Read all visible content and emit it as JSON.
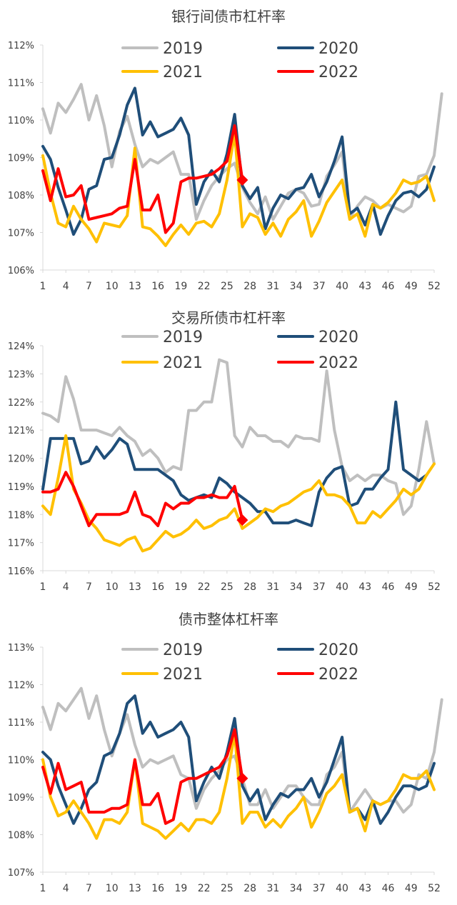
{
  "colors": {
    "2019": "#bfbfbf",
    "2020": "#1f4e79",
    "2021": "#ffc000",
    "2022": "#ff0000",
    "axis": "#d9d9d9",
    "text": "#404040"
  },
  "x_ticks": [
    1,
    4,
    7,
    10,
    13,
    16,
    19,
    22,
    25,
    28,
    31,
    34,
    37,
    40,
    43,
    46,
    49,
    52
  ],
  "chart_data": [
    {
      "type": "line",
      "title": "银行间债市杠杆率",
      "y_unit": "%",
      "ylim": [
        106,
        112
      ],
      "y_ticks": [
        106,
        107,
        108,
        109,
        110,
        111,
        112
      ],
      "xlim": [
        1,
        52
      ],
      "grid": false,
      "legend": "top, two columns",
      "series": [
        {
          "name": "2019",
          "values": [
            110.3,
            109.65,
            110.45,
            110.2,
            110.55,
            110.95,
            110.0,
            110.65,
            109.85,
            108.75,
            109.7,
            110.1,
            109.35,
            108.75,
            108.95,
            108.85,
            109.0,
            109.15,
            108.55,
            108.55,
            107.35,
            107.85,
            108.25,
            108.5,
            108.7,
            108.85,
            108.2,
            107.8,
            107.5,
            107.95,
            107.35,
            107.7,
            108.05,
            108.15,
            108.05,
            107.7,
            107.75,
            108.5,
            108.8,
            109.15,
            107.4,
            107.7,
            107.95,
            107.85,
            107.65,
            107.75,
            107.65,
            107.55,
            107.7,
            108.5,
            108.55,
            109.05,
            110.7
          ]
        },
        {
          "name": "2020",
          "values": [
            109.3,
            108.95,
            108.2,
            107.6,
            106.95,
            107.35,
            108.15,
            108.25,
            108.95,
            109.0,
            109.6,
            110.4,
            110.85,
            109.6,
            109.95,
            109.55,
            109.65,
            109.75,
            110.05,
            109.6,
            107.75,
            108.35,
            108.65,
            108.35,
            109.1,
            110.15,
            108.25,
            107.9,
            108.2,
            107.1,
            107.65,
            108.0,
            107.9,
            108.15,
            108.2,
            108.55,
            107.95,
            108.35,
            108.9,
            109.55,
            107.5,
            107.65,
            107.2,
            107.75,
            106.95,
            107.45,
            107.85,
            108.05,
            108.1,
            107.95,
            108.15,
            108.75
          ]
        },
        {
          "name": "2021",
          "values": [
            109.05,
            108.05,
            107.25,
            107.15,
            107.7,
            107.35,
            107.1,
            106.75,
            107.25,
            107.2,
            107.15,
            107.45,
            109.25,
            107.15,
            107.1,
            106.9,
            106.65,
            106.95,
            107.2,
            106.95,
            107.25,
            107.3,
            107.15,
            107.5,
            108.4,
            109.65,
            107.15,
            107.5,
            107.4,
            106.95,
            107.25,
            106.9,
            107.35,
            107.55,
            107.85,
            106.9,
            107.3,
            107.8,
            108.1,
            108.4,
            107.35,
            107.5,
            106.9,
            107.75,
            107.65,
            107.8,
            108.05,
            108.4,
            108.3,
            108.35,
            108.5,
            107.85
          ]
        },
        {
          "name": "2022",
          "values": [
            108.65,
            107.85,
            108.7,
            107.95,
            108.0,
            108.25,
            107.35,
            107.4,
            107.45,
            107.5,
            107.65,
            107.7,
            108.95,
            107.6,
            107.6,
            108.0,
            107.0,
            107.25,
            108.35,
            108.45,
            108.45,
            108.5,
            108.55,
            108.7,
            108.9,
            109.85,
            108.4
          ]
        }
      ]
    },
    {
      "type": "line",
      "title": "交易所债市杠杆率",
      "y_unit": "%",
      "ylim": [
        116,
        124
      ],
      "y_ticks": [
        116,
        117,
        118,
        119,
        120,
        121,
        122,
        123,
        124
      ],
      "xlim": [
        1,
        52
      ],
      "grid": false,
      "legend": "top, two columns",
      "series": [
        {
          "name": "2019",
          "values": [
            121.6,
            121.5,
            121.3,
            122.9,
            122.1,
            121.0,
            121.0,
            121.0,
            120.9,
            120.8,
            121.1,
            120.8,
            120.6,
            120.1,
            120.3,
            120.0,
            119.5,
            119.7,
            119.6,
            121.7,
            121.7,
            122.0,
            122.0,
            123.5,
            123.4,
            120.8,
            120.4,
            121.1,
            120.8,
            120.8,
            120.6,
            120.6,
            120.4,
            120.8,
            120.7,
            120.7,
            120.6,
            123.1,
            121.0,
            119.7,
            119.2,
            119.4,
            119.2,
            119.4,
            119.4,
            119.2,
            119.1,
            118.0,
            118.3,
            119.6,
            121.3,
            119.8
          ]
        },
        {
          "name": "2020",
          "values": [
            118.9,
            120.7,
            120.7,
            120.7,
            120.7,
            119.8,
            119.9,
            120.4,
            120.0,
            120.3,
            120.7,
            120.5,
            119.6,
            119.6,
            119.6,
            119.6,
            119.4,
            119.2,
            118.7,
            118.5,
            118.6,
            118.7,
            118.6,
            119.3,
            119.1,
            118.8,
            118.6,
            118.4,
            118.1,
            118.1,
            117.7,
            117.7,
            117.7,
            117.8,
            117.7,
            117.6,
            118.8,
            119.3,
            119.6,
            119.7,
            118.3,
            118.4,
            118.9,
            118.9,
            119.3,
            119.6,
            122.0,
            119.6,
            119.4,
            119.2,
            119.4
          ]
        },
        {
          "name": "2021",
          "values": [
            118.3,
            118.0,
            119.3,
            120.8,
            118.9,
            118.4,
            117.8,
            117.5,
            117.1,
            117.0,
            116.9,
            117.1,
            117.2,
            116.7,
            116.8,
            117.1,
            117.4,
            117.2,
            117.3,
            117.5,
            117.8,
            117.5,
            117.6,
            117.8,
            117.9,
            118.2,
            117.5,
            117.7,
            117.9,
            118.2,
            118.1,
            118.3,
            118.4,
            118.6,
            118.8,
            118.9,
            119.2,
            118.7,
            118.7,
            118.6,
            118.3,
            117.7,
            117.7,
            118.1,
            117.9,
            118.2,
            118.5,
            118.9,
            118.7,
            118.9,
            119.4,
            119.8
          ]
        },
        {
          "name": "2022",
          "values": [
            118.8,
            118.8,
            118.9,
            119.5,
            119.0,
            118.3,
            117.6,
            118.0,
            118.0,
            118.0,
            118.0,
            118.1,
            118.8,
            118.0,
            117.9,
            117.6,
            118.4,
            118.2,
            118.4,
            118.4,
            118.6,
            118.6,
            118.7,
            118.6,
            118.6,
            119.0,
            117.8
          ]
        }
      ]
    },
    {
      "type": "line",
      "title": "债市整体杠杆率",
      "y_unit": "%",
      "ylim": [
        107,
        113
      ],
      "y_ticks": [
        107,
        108,
        109,
        110,
        111,
        112,
        113
      ],
      "xlim": [
        1,
        52
      ],
      "grid": false,
      "legend": "top, two columns",
      "series": [
        {
          "name": "2019",
          "values": [
            111.4,
            110.8,
            111.5,
            111.3,
            111.6,
            111.9,
            111.1,
            111.7,
            110.8,
            110.1,
            110.7,
            111.2,
            110.4,
            109.8,
            110.0,
            109.9,
            110.0,
            110.1,
            109.6,
            109.5,
            108.7,
            109.2,
            109.5,
            109.7,
            110.0,
            110.1,
            109.5,
            108.8,
            108.8,
            109.2,
            108.7,
            109.0,
            109.3,
            109.3,
            109.0,
            108.8,
            108.8,
            109.6,
            109.8,
            110.2,
            108.6,
            108.9,
            109.2,
            108.9,
            108.8,
            108.9,
            108.9,
            108.6,
            108.8,
            109.6,
            109.5,
            110.2,
            111.6
          ]
        },
        {
          "name": "2020",
          "values": [
            110.2,
            110.0,
            109.3,
            108.8,
            108.3,
            108.7,
            109.2,
            109.4,
            110.1,
            110.2,
            110.7,
            111.5,
            111.7,
            110.7,
            111.0,
            110.6,
            110.7,
            110.8,
            111.0,
            110.6,
            108.9,
            109.4,
            109.8,
            109.5,
            110.2,
            111.1,
            109.3,
            108.9,
            109.2,
            108.4,
            108.8,
            109.1,
            109.0,
            109.2,
            109.2,
            109.5,
            109.0,
            109.4,
            110.0,
            110.6,
            108.6,
            108.7,
            108.4,
            108.9,
            108.3,
            108.6,
            109.0,
            109.3,
            109.3,
            109.2,
            109.3,
            109.9
          ]
        },
        {
          "name": "2021",
          "values": [
            110.0,
            109.0,
            108.5,
            108.6,
            108.9,
            108.6,
            108.3,
            107.9,
            108.4,
            108.4,
            108.3,
            108.6,
            110.0,
            108.3,
            108.2,
            108.1,
            107.9,
            108.1,
            108.3,
            108.1,
            108.4,
            108.4,
            108.3,
            108.6,
            109.5,
            110.7,
            108.3,
            108.6,
            108.6,
            108.2,
            108.4,
            108.2,
            108.5,
            108.7,
            109.0,
            108.2,
            108.6,
            109.1,
            109.3,
            109.6,
            108.6,
            108.7,
            108.1,
            108.9,
            108.8,
            108.9,
            109.2,
            109.6,
            109.5,
            109.5,
            109.7,
            109.2
          ]
        },
        {
          "name": "2022",
          "values": [
            109.8,
            109.1,
            109.9,
            109.2,
            109.3,
            109.4,
            108.6,
            108.6,
            108.6,
            108.7,
            108.7,
            108.8,
            110.0,
            108.8,
            108.8,
            109.1,
            108.3,
            108.4,
            109.4,
            109.5,
            109.5,
            109.6,
            109.7,
            109.8,
            110.1,
            110.8,
            109.5
          ]
        }
      ]
    }
  ]
}
